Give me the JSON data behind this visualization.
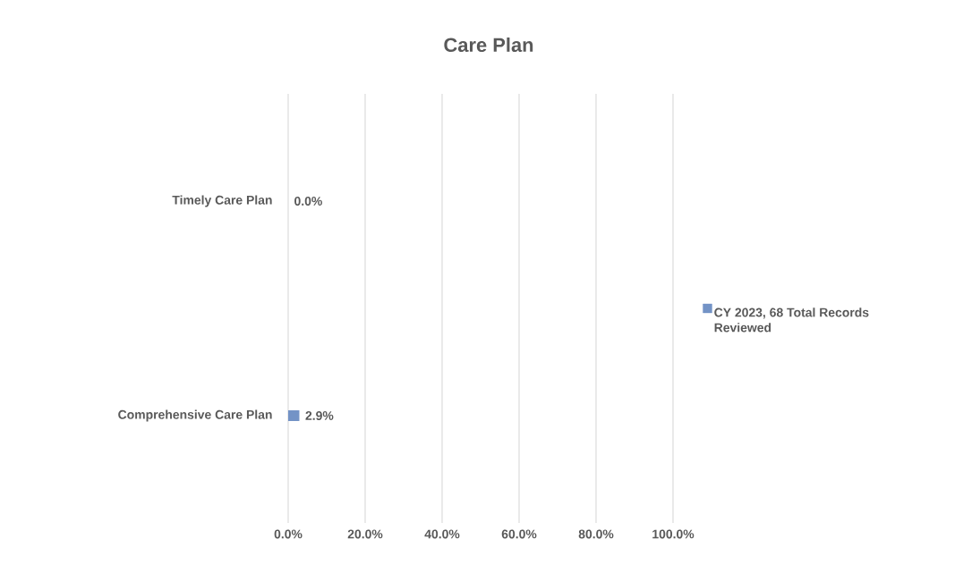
{
  "chart_data": {
    "type": "bar",
    "orientation": "horizontal",
    "title": "Care Plan",
    "categories": [
      "Timely Care Plan",
      "Comprehensive Care Plan"
    ],
    "series": [
      {
        "name": "CY 2023, 68 Total Records Reviewed",
        "color": "#7393c6",
        "values": [
          0.0,
          2.9
        ],
        "value_labels": [
          "0.0%",
          "2.9%"
        ]
      }
    ],
    "xlim": [
      0,
      100
    ],
    "xticks": [
      {
        "value": 0,
        "label": "0.0%"
      },
      {
        "value": 20,
        "label": "20.0%"
      },
      {
        "value": 40,
        "label": "40.0%"
      },
      {
        "value": 60,
        "label": "60.0%"
      },
      {
        "value": 80,
        "label": "80.0%"
      },
      {
        "value": 100,
        "label": "100.0%"
      }
    ],
    "grid": "x",
    "legend": "right"
  }
}
